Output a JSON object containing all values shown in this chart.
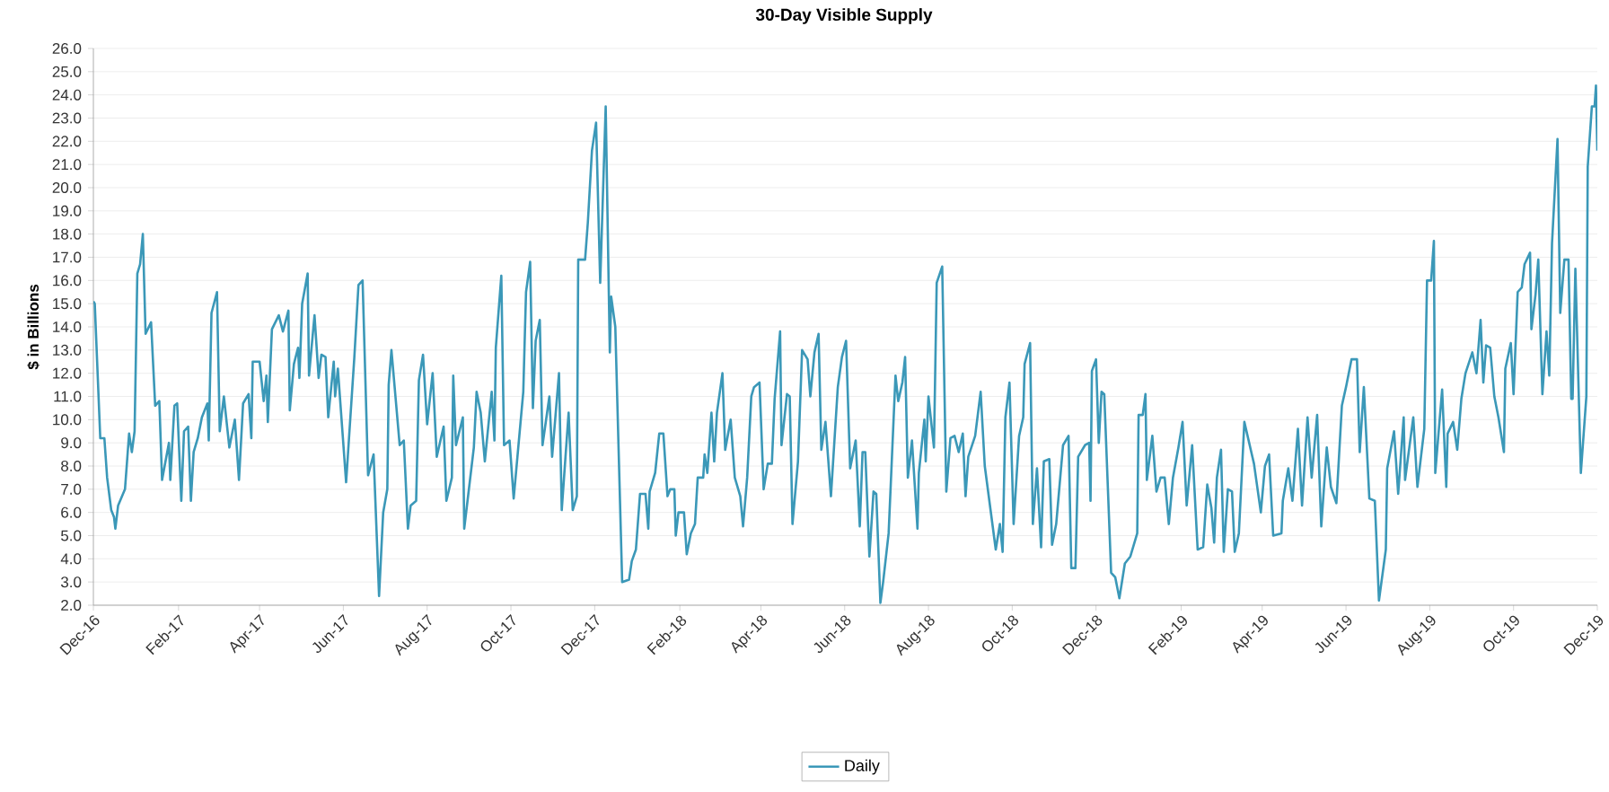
{
  "chart_data": {
    "type": "line",
    "title": "30-Day Visible Supply",
    "ylabel": "$ in Billions",
    "x": [
      "2016-12-01",
      "2016-12-02",
      "2016-12-06",
      "2016-12-09",
      "2016-12-11",
      "2016-12-14",
      "2016-12-16",
      "2016-12-17",
      "2016-12-19",
      "2016-12-24",
      "2016-12-27",
      "2016-12-29",
      "2016-12-31",
      "2017-01-02",
      "2017-01-04",
      "2017-01-06",
      "2017-01-08",
      "2017-01-12",
      "2017-01-15",
      "2017-01-18",
      "2017-01-20",
      "2017-01-25",
      "2017-01-26",
      "2017-01-29",
      "2017-01-31",
      "2017-02-03",
      "2017-02-05",
      "2017-02-08",
      "2017-02-10",
      "2017-02-12",
      "2017-02-15",
      "2017-02-18",
      "2017-02-22",
      "2017-02-23",
      "2017-02-25",
      "2017-03-01",
      "2017-03-03",
      "2017-03-06",
      "2017-03-10",
      "2017-03-14",
      "2017-03-17",
      "2017-03-20",
      "2017-03-24",
      "2017-03-26",
      "2017-03-27",
      "2017-04-01",
      "2017-04-04",
      "2017-04-06",
      "2017-04-07",
      "2017-04-10",
      "2017-04-15",
      "2017-04-18",
      "2017-04-22",
      "2017-04-23",
      "2017-04-26",
      "2017-04-29",
      "2017-04-30",
      "2017-05-02",
      "2017-05-06",
      "2017-05-07",
      "2017-05-11",
      "2017-05-14",
      "2017-05-16",
      "2017-05-19",
      "2017-05-21",
      "2017-05-25",
      "2017-05-26",
      "2017-05-28",
      "2017-06-03",
      "2017-06-09",
      "2017-06-12",
      "2017-06-15",
      "2017-06-19",
      "2017-06-23",
      "2017-06-27",
      "2017-06-30",
      "2017-07-03",
      "2017-07-04",
      "2017-07-06",
      "2017-07-12",
      "2017-07-15",
      "2017-07-18",
      "2017-07-20",
      "2017-07-24",
      "2017-07-26",
      "2017-07-29",
      "2017-08-01",
      "2017-08-05",
      "2017-08-08",
      "2017-08-13",
      "2017-08-15",
      "2017-08-19",
      "2017-08-20",
      "2017-08-22",
      "2017-08-27",
      "2017-08-28",
      "2017-09-04",
      "2017-09-06",
      "2017-09-09",
      "2017-09-12",
      "2017-09-17",
      "2017-09-19",
      "2017-09-20",
      "2017-09-24",
      "2017-09-26",
      "2017-09-30",
      "2017-10-03",
      "2017-10-10",
      "2017-10-12",
      "2017-10-15",
      "2017-10-17",
      "2017-10-19",
      "2017-10-22",
      "2017-10-24",
      "2017-10-29",
      "2017-10-31",
      "2017-11-05",
      "2017-11-07",
      "2017-11-12",
      "2017-11-15",
      "2017-11-18",
      "2017-11-19",
      "2017-11-24",
      "2017-11-26",
      "2017-11-29",
      "2017-12-02",
      "2017-12-05",
      "2017-12-09",
      "2017-12-12",
      "2017-12-13",
      "2017-12-16",
      "2017-12-21",
      "2017-12-26",
      "2017-12-28",
      "2017-12-31",
      "2018-01-03",
      "2018-01-07",
      "2018-01-09",
      "2018-01-10",
      "2018-01-14",
      "2018-01-17",
      "2018-01-20",
      "2018-01-23",
      "2018-01-25",
      "2018-01-28",
      "2018-01-29",
      "2018-01-31",
      "2018-02-04",
      "2018-02-06",
      "2018-02-09",
      "2018-02-12",
      "2018-02-14",
      "2018-02-18",
      "2018-02-19",
      "2018-02-21",
      "2018-02-24",
      "2018-02-26",
      "2018-02-28",
      "2018-03-04",
      "2018-03-06",
      "2018-03-10",
      "2018-03-13",
      "2018-03-17",
      "2018-03-19",
      "2018-03-22",
      "2018-03-25",
      "2018-03-27",
      "2018-03-31",
      "2018-04-03",
      "2018-04-06",
      "2018-04-09",
      "2018-04-11",
      "2018-04-15",
      "2018-04-16",
      "2018-04-20",
      "2018-04-22",
      "2018-04-24",
      "2018-04-28",
      "2018-05-01",
      "2018-05-05",
      "2018-05-07",
      "2018-05-10",
      "2018-05-13",
      "2018-05-15",
      "2018-05-18",
      "2018-05-22",
      "2018-05-27",
      "2018-05-30",
      "2018-06-02",
      "2018-06-05",
      "2018-06-09",
      "2018-06-12",
      "2018-06-14",
      "2018-06-16",
      "2018-06-19",
      "2018-06-22",
      "2018-06-24",
      "2018-06-27",
      "2018-06-29",
      "2018-07-03",
      "2018-07-08",
      "2018-07-10",
      "2018-07-13",
      "2018-07-15",
      "2018-07-17",
      "2018-07-20",
      "2018-07-24",
      "2018-07-25",
      "2018-07-29",
      "2018-07-30",
      "2018-08-01",
      "2018-08-05",
      "2018-08-07",
      "2018-08-11",
      "2018-08-14",
      "2018-08-17",
      "2018-08-20",
      "2018-08-23",
      "2018-08-26",
      "2018-08-28",
      "2018-08-30",
      "2018-09-04",
      "2018-09-08",
      "2018-09-11",
      "2018-09-19",
      "2018-09-22",
      "2018-09-24",
      "2018-09-26",
      "2018-09-29",
      "2018-10-02",
      "2018-10-06",
      "2018-10-09",
      "2018-10-10",
      "2018-10-14",
      "2018-10-16",
      "2018-10-19",
      "2018-10-22",
      "2018-10-24",
      "2018-10-28",
      "2018-10-30",
      "2018-11-02",
      "2018-11-07",
      "2018-11-11",
      "2018-11-13",
      "2018-11-16",
      "2018-11-18",
      "2018-11-23",
      "2018-11-26",
      "2018-11-27",
      "2018-11-28",
      "2018-12-01",
      "2018-12-03",
      "2018-12-05",
      "2018-12-07",
      "2018-12-12",
      "2018-12-15",
      "2018-12-18",
      "2018-12-22",
      "2018-12-26",
      "2018-12-31",
      "2019-01-01",
      "2019-01-04",
      "2019-01-06",
      "2019-01-07",
      "2019-01-11",
      "2019-01-14",
      "2019-01-17",
      "2019-01-20",
      "2019-01-23",
      "2019-01-26",
      "2019-01-30",
      "2019-02-02",
      "2019-02-05",
      "2019-02-09",
      "2019-02-13",
      "2019-02-17",
      "2019-02-20",
      "2019-02-23",
      "2019-02-25",
      "2019-02-27",
      "2019-03-02",
      "2019-03-04",
      "2019-03-07",
      "2019-03-10",
      "2019-03-12",
      "2019-03-15",
      "2019-03-19",
      "2019-03-26",
      "2019-03-31",
      "2019-04-03",
      "2019-04-06",
      "2019-04-09",
      "2019-04-15",
      "2019-04-16",
      "2019-04-20",
      "2019-04-23",
      "2019-04-27",
      "2019-04-30",
      "2019-05-04",
      "2019-05-07",
      "2019-05-11",
      "2019-05-14",
      "2019-05-18",
      "2019-05-21",
      "2019-05-25",
      "2019-05-29",
      "2019-06-01",
      "2019-06-05",
      "2019-06-09",
      "2019-06-11",
      "2019-06-14",
      "2019-06-18",
      "2019-06-22",
      "2019-06-25",
      "2019-06-30",
      "2019-07-01",
      "2019-07-06",
      "2019-07-09",
      "2019-07-13",
      "2019-07-14",
      "2019-07-20",
      "2019-07-23",
      "2019-07-28",
      "2019-07-30",
      "2019-08-02",
      "2019-08-04",
      "2019-08-05",
      "2019-08-10",
      "2019-08-13",
      "2019-08-14",
      "2019-08-18",
      "2019-08-21",
      "2019-08-24",
      "2019-08-27",
      "2019-09-01",
      "2019-09-04",
      "2019-09-07",
      "2019-09-09",
      "2019-09-11",
      "2019-09-14",
      "2019-09-17",
      "2019-09-20",
      "2019-09-24",
      "2019-09-25",
      "2019-09-29",
      "2019-10-01",
      "2019-10-04",
      "2019-10-07",
      "2019-10-09",
      "2019-10-13",
      "2019-10-14",
      "2019-10-17",
      "2019-10-19",
      "2019-10-22",
      "2019-10-25",
      "2019-10-27",
      "2019-10-29",
      "2019-11-02",
      "2019-11-04",
      "2019-11-07",
      "2019-11-10",
      "2019-11-12",
      "2019-11-13",
      "2019-11-15",
      "2019-11-19",
      "2019-11-23",
      "2019-11-24",
      "2019-11-27",
      "2019-11-29",
      "2019-11-30",
      "2019-12-01"
    ],
    "series": [
      {
        "name": "Daily",
        "color": "#3b98b8",
        "values": [
          15.1,
          15.0,
          9.2,
          9.2,
          7.5,
          6.1,
          5.8,
          5.3,
          6.3,
          7.0,
          9.4,
          8.6,
          9.5,
          16.3,
          16.7,
          18.0,
          13.7,
          14.2,
          10.6,
          10.8,
          7.4,
          9.0,
          7.4,
          10.6,
          10.7,
          6.5,
          9.5,
          9.7,
          6.5,
          8.6,
          9.2,
          10.1,
          10.7,
          9.1,
          14.6,
          15.5,
          9.5,
          11.0,
          8.8,
          10.0,
          7.4,
          10.7,
          11.1,
          9.2,
          12.5,
          12.5,
          10.8,
          11.9,
          9.9,
          13.9,
          14.5,
          13.8,
          14.7,
          10.4,
          12.4,
          13.1,
          11.8,
          15.0,
          16.3,
          11.9,
          14.5,
          11.8,
          12.8,
          12.7,
          10.1,
          12.5,
          11.0,
          12.2,
          7.3,
          12.7,
          15.8,
          16.0,
          7.6,
          8.5,
          2.4,
          6.0,
          7.0,
          11.5,
          13.0,
          8.9,
          9.1,
          5.3,
          6.3,
          6.5,
          11.7,
          12.8,
          9.8,
          12.0,
          8.4,
          9.7,
          6.5,
          7.5,
          11.9,
          8.9,
          10.1,
          5.3,
          8.8,
          11.2,
          10.3,
          8.2,
          11.2,
          9.1,
          13.1,
          16.2,
          8.9,
          9.1,
          6.6,
          11.2,
          15.5,
          16.8,
          10.5,
          13.4,
          14.3,
          8.9,
          11.0,
          8.4,
          12.0,
          6.1,
          10.3,
          6.1,
          6.7,
          16.9,
          16.9,
          18.5,
          21.6,
          22.8,
          15.9,
          23.5,
          12.9,
          15.3,
          14.0,
          3.0,
          3.1,
          3.9,
          4.4,
          6.8,
          6.8,
          5.3,
          6.9,
          7.7,
          9.4,
          9.4,
          6.7,
          7.0,
          7.0,
          5.0,
          6.0,
          6.0,
          4.2,
          5.1,
          5.5,
          7.5,
          7.5,
          8.5,
          7.7,
          10.3,
          8.2,
          10.3,
          12.0,
          8.7,
          10.0,
          7.5,
          6.7,
          5.4,
          7.5,
          11.0,
          11.4,
          11.6,
          7.0,
          8.1,
          8.1,
          10.9,
          13.8,
          8.9,
          11.1,
          11.0,
          5.5,
          8.2,
          13.0,
          12.6,
          11.0,
          12.9,
          13.7,
          8.7,
          9.9,
          6.7,
          11.4,
          12.7,
          13.4,
          7.9,
          9.1,
          5.4,
          8.6,
          8.6,
          4.1,
          6.9,
          6.8,
          2.1,
          3.0,
          5.1,
          11.9,
          10.8,
          11.6,
          12.7,
          7.5,
          9.1,
          5.3,
          7.7,
          10.0,
          8.2,
          11.0,
          8.8,
          15.9,
          16.6,
          6.9,
          9.2,
          9.3,
          8.6,
          9.4,
          6.7,
          8.4,
          9.3,
          11.2,
          8.0,
          4.4,
          5.5,
          4.3,
          10.1,
          11.6,
          5.5,
          9.3,
          10.1,
          12.4,
          13.3,
          5.5,
          7.9,
          4.5,
          8.2,
          8.3,
          4.6,
          5.5,
          8.9,
          9.3,
          3.6,
          3.6,
          8.4,
          8.9,
          9.0,
          6.5,
          12.1,
          12.6,
          9.0,
          11.2,
          11.1,
          3.4,
          3.2,
          2.3,
          3.8,
          4.1,
          5.1,
          10.2,
          10.2,
          11.1,
          7.4,
          9.3,
          6.9,
          7.5,
          7.5,
          5.5,
          7.5,
          8.8,
          9.9,
          6.3,
          8.9,
          4.4,
          4.5,
          7.2,
          6.2,
          4.7,
          7.5,
          8.7,
          4.3,
          7.0,
          6.9,
          4.3,
          5.1,
          9.9,
          8.1,
          6.0,
          8.0,
          8.5,
          5.0,
          5.1,
          6.5,
          7.9,
          6.5,
          9.6,
          6.3,
          10.1,
          7.5,
          10.2,
          5.4,
          8.8,
          7.1,
          6.4,
          10.6,
          11.4,
          12.6,
          12.6,
          8.6,
          11.4,
          6.6,
          6.5,
          2.2,
          4.4,
          7.9,
          9.5,
          6.8,
          10.1,
          7.4,
          10.1,
          7.1,
          9.6,
          16.0,
          16.0,
          17.7,
          7.7,
          11.3,
          7.1,
          9.4,
          9.9,
          8.7,
          10.9,
          12.0,
          12.9,
          12.0,
          14.3,
          11.6,
          13.2,
          13.1,
          11.0,
          10.1,
          8.6,
          12.2,
          13.3,
          11.1,
          15.5,
          15.7,
          16.7,
          17.2,
          13.9,
          15.4,
          16.9,
          11.1,
          13.8,
          11.9,
          17.6,
          22.1,
          14.6,
          16.9,
          16.9,
          10.9,
          10.9,
          16.5,
          7.7,
          11.0,
          20.9,
          23.5,
          23.5,
          24.4,
          21.6
        ]
      }
    ],
    "xlim": [
      "2016-12-01",
      "2019-12-01"
    ],
    "xticks": [
      {
        "value": "2016-12-01",
        "label": "Dec-16"
      },
      {
        "value": "2017-02-01",
        "label": "Feb-17"
      },
      {
        "value": "2017-04-01",
        "label": "Apr-17"
      },
      {
        "value": "2017-06-01",
        "label": "Jun-17"
      },
      {
        "value": "2017-08-01",
        "label": "Aug-17"
      },
      {
        "value": "2017-10-01",
        "label": "Oct-17"
      },
      {
        "value": "2017-12-01",
        "label": "Dec-17"
      },
      {
        "value": "2018-02-01",
        "label": "Feb-18"
      },
      {
        "value": "2018-04-01",
        "label": "Apr-18"
      },
      {
        "value": "2018-06-01",
        "label": "Jun-18"
      },
      {
        "value": "2018-08-01",
        "label": "Aug-18"
      },
      {
        "value": "2018-10-01",
        "label": "Oct-18"
      },
      {
        "value": "2018-12-01",
        "label": "Dec-18"
      },
      {
        "value": "2019-02-01",
        "label": "Feb-19"
      },
      {
        "value": "2019-04-01",
        "label": "Apr-19"
      },
      {
        "value": "2019-06-01",
        "label": "Jun-19"
      },
      {
        "value": "2019-08-01",
        "label": "Aug-19"
      },
      {
        "value": "2019-10-01",
        "label": "Oct-19"
      },
      {
        "value": "2019-12-01",
        "label": "Dec-19"
      }
    ],
    "ylim": [
      2,
      26
    ],
    "yticks": [
      {
        "value": 2,
        "label": "2.0"
      },
      {
        "value": 3,
        "label": "3.0"
      },
      {
        "value": 4,
        "label": "4.0"
      },
      {
        "value": 5,
        "label": "5.0"
      },
      {
        "value": 6,
        "label": "6.0"
      },
      {
        "value": 7,
        "label": "7.0"
      },
      {
        "value": 8,
        "label": "8.0"
      },
      {
        "value": 9,
        "label": "9.0"
      },
      {
        "value": 10,
        "label": "10.0"
      },
      {
        "value": 11,
        "label": "11.0"
      },
      {
        "value": 12,
        "label": "12.0"
      },
      {
        "value": 13,
        "label": "13.0"
      },
      {
        "value": 14,
        "label": "14.0"
      },
      {
        "value": 15,
        "label": "15.0"
      },
      {
        "value": 16,
        "label": "16.0"
      },
      {
        "value": 17,
        "label": "17.0"
      },
      {
        "value": 18,
        "label": "18.0"
      },
      {
        "value": 19,
        "label": "19.0"
      },
      {
        "value": 20,
        "label": "20.0"
      },
      {
        "value": 21,
        "label": "21.0"
      },
      {
        "value": 22,
        "label": "22.0"
      },
      {
        "value": 23,
        "label": "23.0"
      },
      {
        "value": 24,
        "label": "24.0"
      },
      {
        "value": 25,
        "label": "25.0"
      },
      {
        "value": 26,
        "label": "26.0"
      }
    ],
    "grid": "y",
    "legend": "bottom"
  }
}
